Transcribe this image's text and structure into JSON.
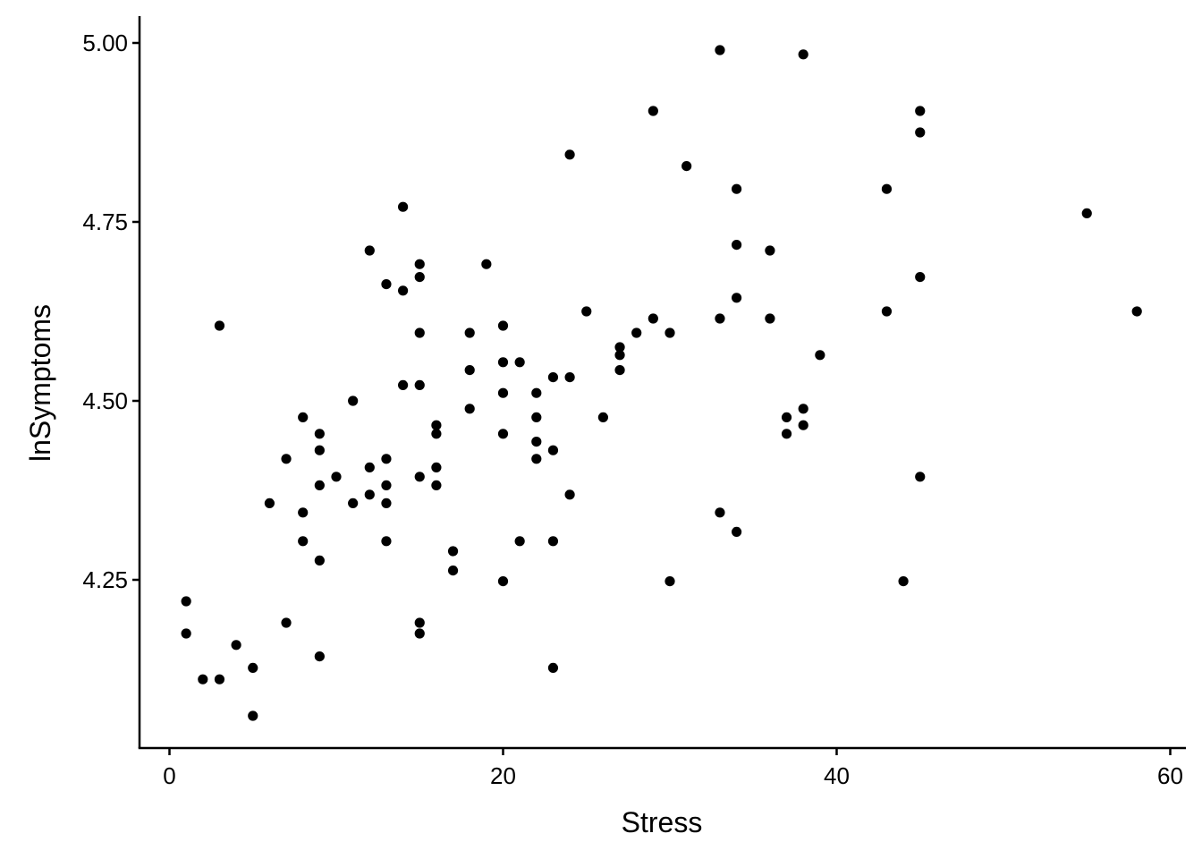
{
  "chart_data": {
    "type": "scatter",
    "title": "",
    "xlabel": "Stress",
    "ylabel": "lnSymptoms",
    "xlim": [
      -2,
      61
    ],
    "ylim": [
      4.01,
      5.04
    ],
    "xticks": [
      0,
      20,
      40,
      60
    ],
    "xtick_labels": [
      "0",
      "20",
      "40",
      "60"
    ],
    "yticks": [
      4.25,
      4.5,
      4.75,
      5.0
    ],
    "ytick_labels": [
      "4.25",
      "4.50",
      "4.75",
      "5.00"
    ],
    "grid": false,
    "legend": "none",
    "point_color": "#000000",
    "points": [
      {
        "x": 1,
        "y": 4.22
      },
      {
        "x": 1,
        "y": 4.175
      },
      {
        "x": 2,
        "y": 4.111
      },
      {
        "x": 3,
        "y": 4.111
      },
      {
        "x": 3,
        "y": 4.605
      },
      {
        "x": 4,
        "y": 4.159
      },
      {
        "x": 5,
        "y": 4.127
      },
      {
        "x": 5,
        "y": 4.06
      },
      {
        "x": 6,
        "y": 4.357
      },
      {
        "x": 7,
        "y": 4.419
      },
      {
        "x": 7,
        "y": 4.19
      },
      {
        "x": 8,
        "y": 4.477
      },
      {
        "x": 8,
        "y": 4.344
      },
      {
        "x": 8,
        "y": 4.304
      },
      {
        "x": 9,
        "y": 4.454
      },
      {
        "x": 9,
        "y": 4.431
      },
      {
        "x": 9,
        "y": 4.382
      },
      {
        "x": 9,
        "y": 4.277
      },
      {
        "x": 9,
        "y": 4.143
      },
      {
        "x": 10,
        "y": 4.394
      },
      {
        "x": 11,
        "y": 4.5
      },
      {
        "x": 11,
        "y": 4.357
      },
      {
        "x": 12,
        "y": 4.71
      },
      {
        "x": 12,
        "y": 4.407
      },
      {
        "x": 12,
        "y": 4.369
      },
      {
        "x": 13,
        "y": 4.663
      },
      {
        "x": 13,
        "y": 4.419
      },
      {
        "x": 13,
        "y": 4.382
      },
      {
        "x": 13,
        "y": 4.357
      },
      {
        "x": 13,
        "y": 4.304
      },
      {
        "x": 14,
        "y": 4.771
      },
      {
        "x": 14,
        "y": 4.654
      },
      {
        "x": 14,
        "y": 4.522
      },
      {
        "x": 15,
        "y": 4.691
      },
      {
        "x": 15,
        "y": 4.673
      },
      {
        "x": 15,
        "y": 4.595
      },
      {
        "x": 15,
        "y": 4.522
      },
      {
        "x": 15,
        "y": 4.394
      },
      {
        "x": 15,
        "y": 4.19
      },
      {
        "x": 15,
        "y": 4.175
      },
      {
        "x": 16,
        "y": 4.466
      },
      {
        "x": 16,
        "y": 4.454
      },
      {
        "x": 16,
        "y": 4.407
      },
      {
        "x": 16,
        "y": 4.382
      },
      {
        "x": 17,
        "y": 4.29
      },
      {
        "x": 17,
        "y": 4.263
      },
      {
        "x": 18,
        "y": 4.595
      },
      {
        "x": 18,
        "y": 4.543
      },
      {
        "x": 18,
        "y": 4.489
      },
      {
        "x": 19,
        "y": 4.691
      },
      {
        "x": 20,
        "y": 4.605
      },
      {
        "x": 20,
        "y": 4.554
      },
      {
        "x": 20,
        "y": 4.511
      },
      {
        "x": 20,
        "y": 4.454
      },
      {
        "x": 20,
        "y": 4.248
      },
      {
        "x": 21,
        "y": 4.554
      },
      {
        "x": 21,
        "y": 4.304
      },
      {
        "x": 22,
        "y": 4.511
      },
      {
        "x": 22,
        "y": 4.477
      },
      {
        "x": 22,
        "y": 4.443
      },
      {
        "x": 22,
        "y": 4.419
      },
      {
        "x": 23,
        "y": 4.533
      },
      {
        "x": 23,
        "y": 4.431
      },
      {
        "x": 23,
        "y": 4.304
      },
      {
        "x": 23,
        "y": 4.127
      },
      {
        "x": 24,
        "y": 4.844
      },
      {
        "x": 24,
        "y": 4.533
      },
      {
        "x": 24,
        "y": 4.369
      },
      {
        "x": 25,
        "y": 4.625
      },
      {
        "x": 26,
        "y": 4.477
      },
      {
        "x": 27,
        "y": 4.575
      },
      {
        "x": 27,
        "y": 4.564
      },
      {
        "x": 27,
        "y": 4.543
      },
      {
        "x": 28,
        "y": 4.595
      },
      {
        "x": 29,
        "y": 4.905
      },
      {
        "x": 29,
        "y": 4.615
      },
      {
        "x": 30,
        "y": 4.595
      },
      {
        "x": 30,
        "y": 4.248
      },
      {
        "x": 31,
        "y": 4.828
      },
      {
        "x": 33,
        "y": 4.99
      },
      {
        "x": 33,
        "y": 4.615
      },
      {
        "x": 33,
        "y": 4.344
      },
      {
        "x": 34,
        "y": 4.796
      },
      {
        "x": 34,
        "y": 4.718
      },
      {
        "x": 34,
        "y": 4.644
      },
      {
        "x": 34,
        "y": 4.317
      },
      {
        "x": 36,
        "y": 4.71
      },
      {
        "x": 36,
        "y": 4.615
      },
      {
        "x": 37,
        "y": 4.477
      },
      {
        "x": 37,
        "y": 4.454
      },
      {
        "x": 38,
        "y": 4.984
      },
      {
        "x": 38,
        "y": 4.489
      },
      {
        "x": 38,
        "y": 4.466
      },
      {
        "x": 39,
        "y": 4.564
      },
      {
        "x": 43,
        "y": 4.796
      },
      {
        "x": 43,
        "y": 4.625
      },
      {
        "x": 44,
        "y": 4.248
      },
      {
        "x": 45,
        "y": 4.905
      },
      {
        "x": 45,
        "y": 4.875
      },
      {
        "x": 45,
        "y": 4.673
      },
      {
        "x": 45,
        "y": 4.394
      },
      {
        "x": 55,
        "y": 4.762
      },
      {
        "x": 58,
        "y": 4.625
      }
    ]
  }
}
